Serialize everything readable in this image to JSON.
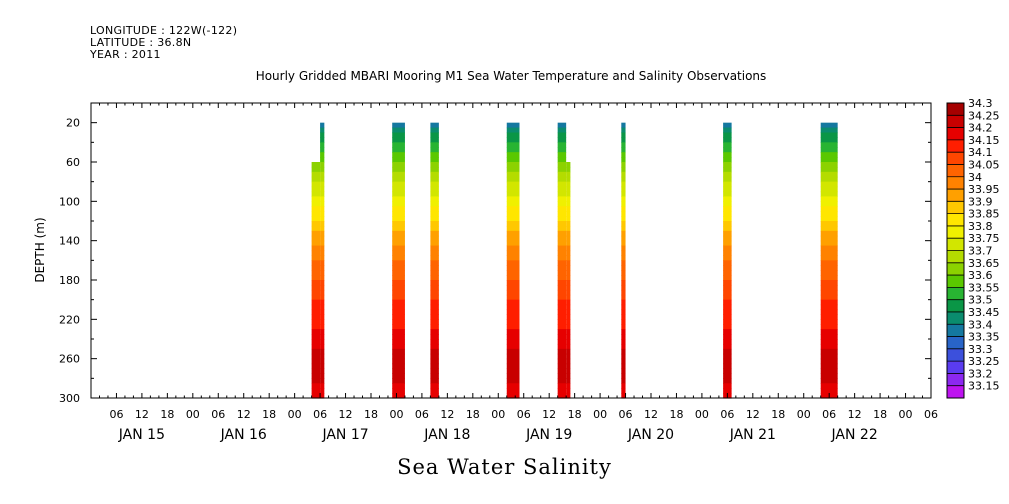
{
  "header": {
    "longitude": "LONGITUDE : 122W(-122)",
    "latitude": "LATITUDE : 36.8N",
    "year": "YEAR : 2011"
  },
  "chart_data": {
    "type": "heatmap",
    "title": "Hourly Gridded MBARI Mooring M1 Sea Water Temperature and Salinity Observations",
    "ylabel": "DEPTH (m)",
    "xlabel": "Sea Water Salinity",
    "x_hour_ticks": [
      "06",
      "12",
      "18",
      "00",
      "06",
      "12",
      "18",
      "00",
      "06",
      "12",
      "18",
      "00",
      "06",
      "12",
      "18",
      "00",
      "06",
      "12",
      "18",
      "00",
      "06",
      "12",
      "18",
      "00",
      "06",
      "12",
      "18",
      "00",
      "06",
      "12",
      "18",
      "00",
      "06"
    ],
    "x_day_labels": [
      "JAN 15",
      "JAN 16",
      "JAN 17",
      "JAN 18",
      "JAN 19",
      "JAN 20",
      "JAN 21",
      "JAN 22"
    ],
    "xlim_hours": [
      -24,
      174
    ],
    "y_ticks": [
      20,
      60,
      100,
      140,
      180,
      220,
      260,
      300
    ],
    "ylim": [
      300,
      0
    ],
    "colorbar_levels": [
      "34.3",
      "34.25",
      "34.2",
      "34.15",
      "34.1",
      "34.05",
      "34",
      "33.95",
      "33.9",
      "33.85",
      "33.8",
      "33.75",
      "33.7",
      "33.65",
      "33.6",
      "33.55",
      "33.5",
      "33.45",
      "33.4",
      "33.35",
      "33.3",
      "33.25",
      "33.2",
      "33.15"
    ],
    "colorbar_colors": [
      "#a50000",
      "#c80000",
      "#e60000",
      "#ff1e00",
      "#ff4600",
      "#ff6400",
      "#ff8200",
      "#ffa000",
      "#ffc800",
      "#ffe600",
      "#f0f000",
      "#d2e600",
      "#b4dc00",
      "#8cd200",
      "#5ac800",
      "#28b432",
      "#0a9646",
      "#0a8c6e",
      "#1478a0",
      "#2864c8",
      "#3c50dc",
      "#5a3cf0",
      "#8c28f0",
      "#be14f0"
    ],
    "profile": [
      {
        "depth": 20,
        "salinity": 33.4
      },
      {
        "depth": 40,
        "salinity": 33.52
      },
      {
        "depth": 60,
        "salinity": 33.62
      },
      {
        "depth": 80,
        "salinity": 33.72
      },
      {
        "depth": 100,
        "salinity": 33.8
      },
      {
        "depth": 120,
        "salinity": 33.88
      },
      {
        "depth": 140,
        "salinity": 33.96
      },
      {
        "depth": 160,
        "salinity": 34.03
      },
      {
        "depth": 180,
        "salinity": 34.08
      },
      {
        "depth": 200,
        "salinity": 34.12
      },
      {
        "depth": 220,
        "salinity": 34.16
      },
      {
        "depth": 240,
        "salinity": 34.2
      },
      {
        "depth": 260,
        "salinity": 34.25
      },
      {
        "depth": 280,
        "salinity": 34.23
      },
      {
        "depth": 300,
        "salinity": 34.2
      }
    ],
    "segments": [
      {
        "start_hour": 28,
        "end_hour": 30,
        "top_depth": 60
      },
      {
        "start_hour": 30,
        "end_hour": 31,
        "top_depth": 20
      },
      {
        "start_hour": 47,
        "end_hour": 50,
        "top_depth": 20
      },
      {
        "start_hour": 56,
        "end_hour": 58,
        "top_depth": 20
      },
      {
        "start_hour": 74,
        "end_hour": 77,
        "top_depth": 20
      },
      {
        "start_hour": 86,
        "end_hour": 88,
        "top_depth": 20
      },
      {
        "start_hour": 88,
        "end_hour": 89,
        "top_depth": 60
      },
      {
        "start_hour": 101,
        "end_hour": 102,
        "top_depth": 20
      },
      {
        "start_hour": 125,
        "end_hour": 127,
        "top_depth": 20
      },
      {
        "start_hour": 148,
        "end_hour": 152,
        "top_depth": 20
      }
    ]
  }
}
